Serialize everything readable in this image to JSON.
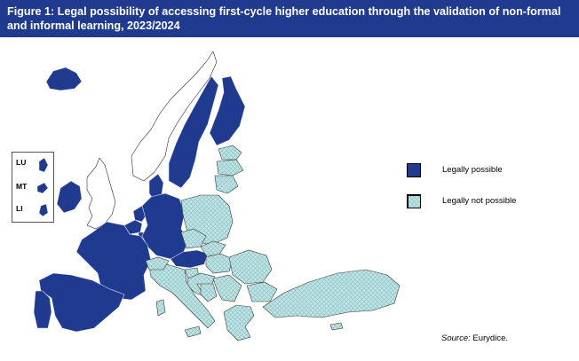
{
  "title": "Figure 1: Legal possibility of accessing first-cycle higher education through the validation of non-formal and informal learning, 2023/2024",
  "inset_labels": [
    "LU",
    "MT",
    "LI"
  ],
  "legend": [
    {
      "label": "Legally possible",
      "color": "#1f3a8f"
    },
    {
      "label": "Legally not possible",
      "color": "#bfe3e3"
    }
  ],
  "source_prefix": "Source:",
  "source_text": "Eurydice.",
  "colors": {
    "possible": "#1f3a8f",
    "not_possible": "#bfe3e3",
    "outside": "#ffffff",
    "border": "#2b2b2b"
  }
}
